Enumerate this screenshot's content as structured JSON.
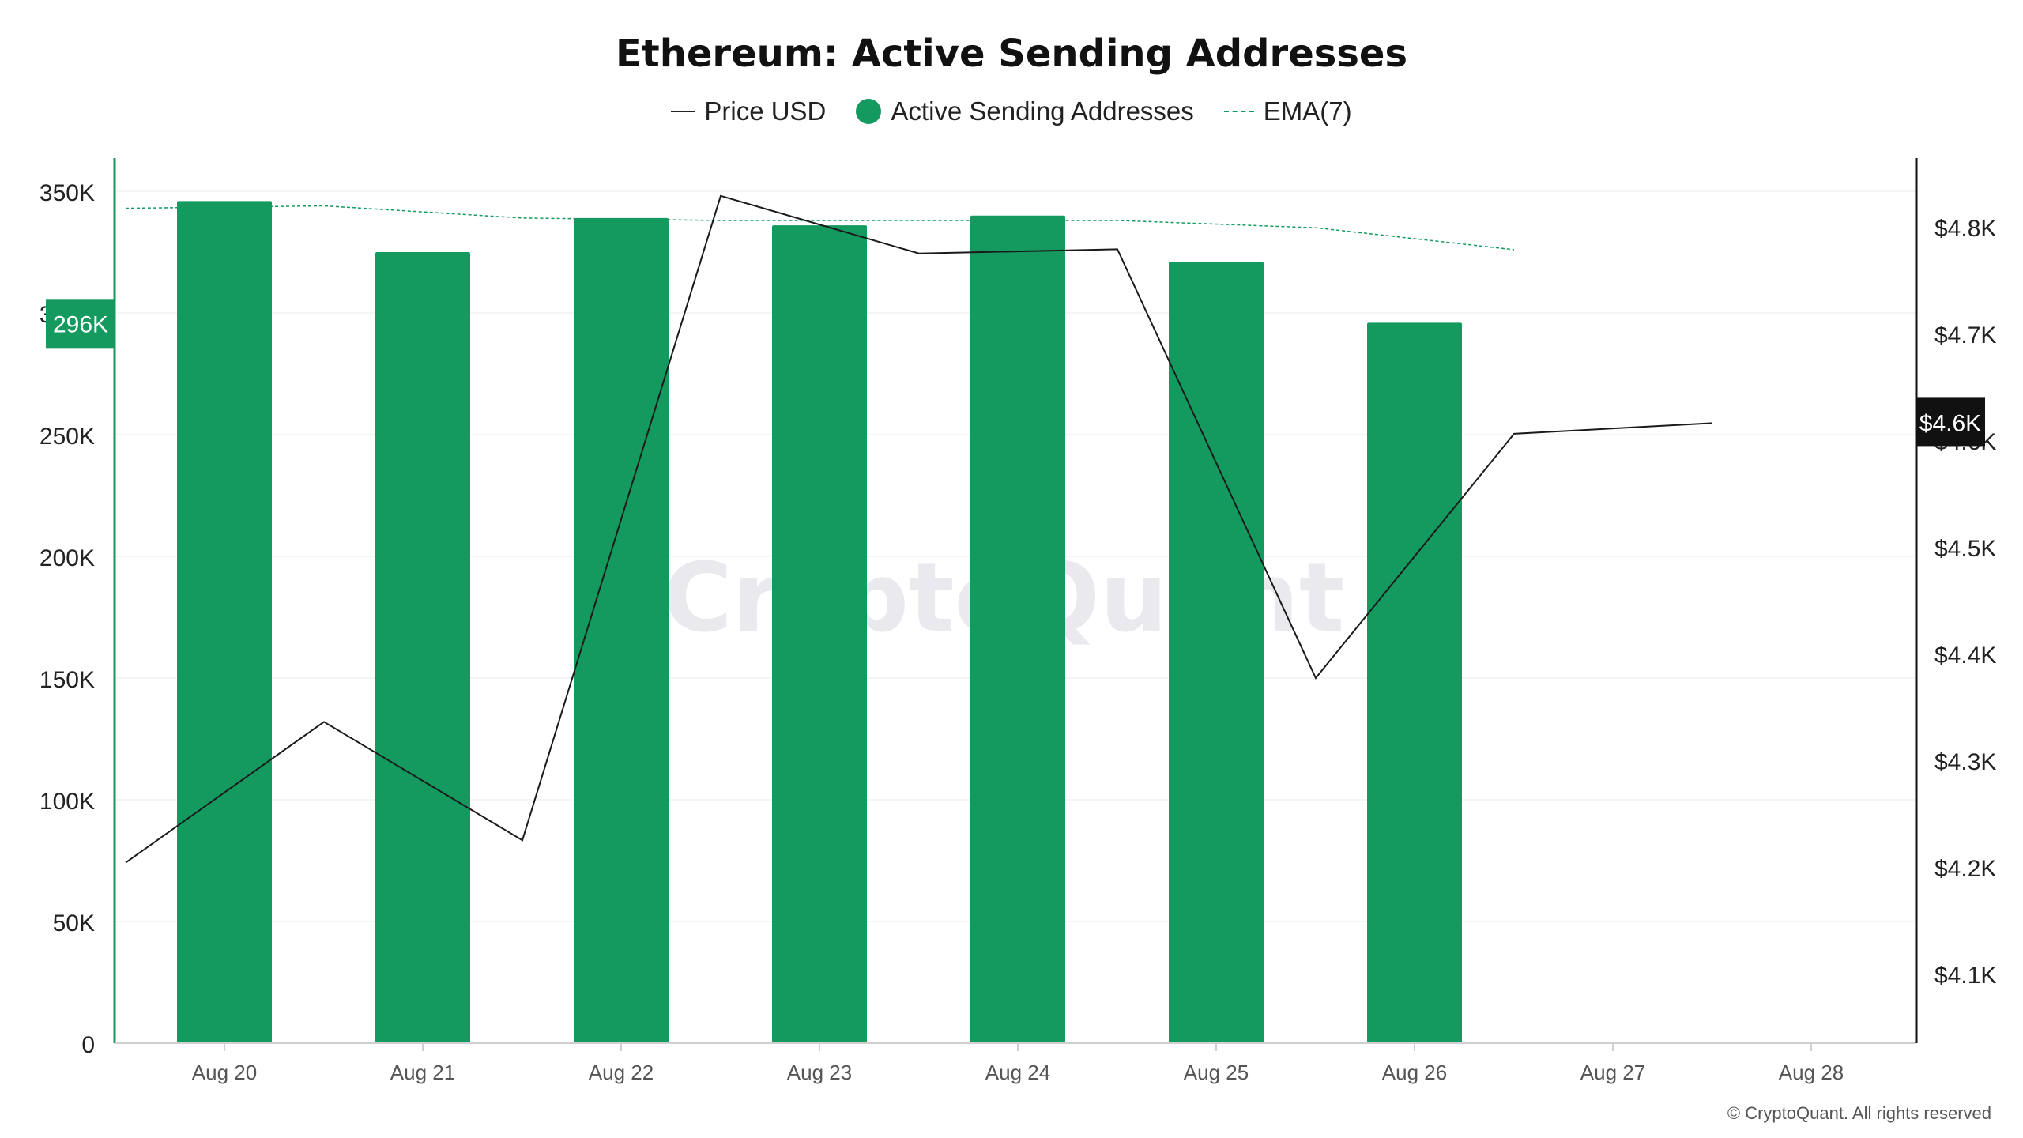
{
  "chart_data": {
    "type": "bar",
    "title": "Ethereum: Active Sending Addresses",
    "categories": [
      "Aug 20",
      "Aug 21",
      "Aug 22",
      "Aug 23",
      "Aug 24",
      "Aug 25",
      "Aug 26",
      "Aug 27",
      "Aug 28"
    ],
    "series": [
      {
        "name": "Price USD",
        "type": "line",
        "axis": "right",
        "color": "#1a1a1a",
        "values": [
          4204,
          4336,
          4225,
          4829,
          4775,
          4779,
          4377,
          4606,
          4616
        ]
      },
      {
        "name": "Active Sending Addresses",
        "type": "bar",
        "axis": "left",
        "color": "#149a5f",
        "values": [
          346000,
          325000,
          339000,
          336000,
          340000,
          321000,
          296000,
          null,
          null
        ]
      },
      {
        "name": "EMA(7)",
        "type": "line",
        "axis": "left",
        "color": "#149a5f",
        "dashed": true,
        "values": [
          343000,
          344000,
          339000,
          338000,
          338000,
          338000,
          335000,
          326000,
          null
        ]
      }
    ],
    "left_axis": {
      "ylim": [
        0,
        350000
      ],
      "ticks": [
        "0",
        "50K",
        "100K",
        "150K",
        "200K",
        "250K",
        "300K",
        "350K"
      ]
    },
    "right_axis": {
      "ylim": [
        4100,
        4800
      ],
      "ticks": [
        "$4.1K",
        "$4.2K",
        "$4.3K",
        "$4.4K",
        "$4.5K",
        "$4.6K",
        "$4.7K",
        "$4.8K"
      ]
    },
    "highlight_left": "296K",
    "highlight_right": "$4.6K",
    "grid": true,
    "legend_position": "top-center"
  },
  "legend": {
    "price": "Price USD",
    "active": "Active Sending Addresses",
    "ema": "EMA(7)"
  },
  "watermark": "CryptoQuant",
  "copyright": "© CryptoQuant. All rights reserved"
}
